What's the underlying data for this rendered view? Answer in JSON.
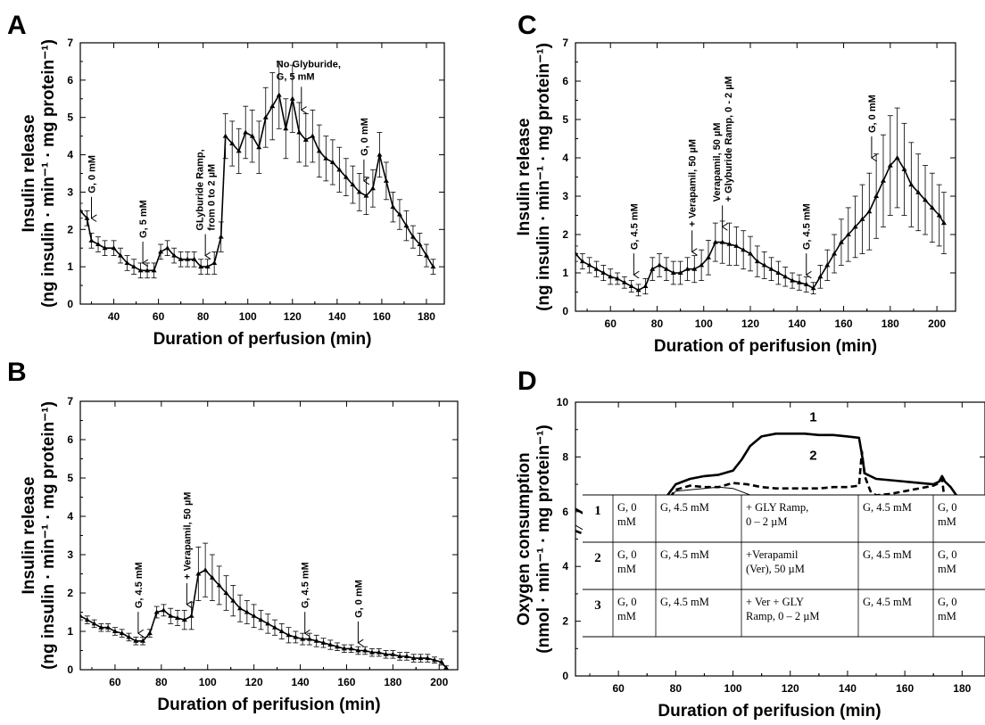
{
  "chart_data": [
    {
      "panel": "A",
      "type": "line",
      "xlabel": "Duration of perfusion (min)",
      "ylabel_line1": "Insulin release",
      "ylabel_line2": "(ng insulin · min⁻¹ · mg protein⁻¹)",
      "xlim": [
        25,
        188
      ],
      "ylim": [
        0,
        7
      ],
      "xticks": [
        40,
        60,
        80,
        100,
        120,
        140,
        160,
        180
      ],
      "yticks": [
        0,
        1,
        2,
        3,
        4,
        5,
        6,
        7
      ],
      "error_bars": true,
      "series": [
        {
          "x": [
            25,
            28,
            30,
            33,
            36,
            40,
            43,
            46,
            49,
            52,
            55,
            58,
            61,
            64,
            67,
            70,
            73,
            76,
            79,
            82,
            85,
            88,
            90,
            93,
            96,
            99,
            102,
            105,
            108,
            111,
            114,
            117,
            120,
            123,
            126,
            129,
            132,
            135,
            138,
            141,
            144,
            147,
            150,
            153,
            156,
            159,
            162,
            165,
            168,
            171,
            174,
            177,
            180,
            183
          ],
          "y": [
            2.5,
            2.3,
            1.7,
            1.6,
            1.5,
            1.5,
            1.3,
            1.1,
            1.0,
            0.9,
            0.9,
            0.9,
            1.4,
            1.5,
            1.3,
            1.2,
            1.2,
            1.2,
            1.0,
            1.0,
            1.1,
            1.8,
            4.5,
            4.3,
            4.1,
            4.6,
            4.5,
            4.2,
            5.0,
            5.3,
            5.6,
            4.7,
            5.5,
            4.6,
            4.4,
            4.5,
            4.1,
            3.9,
            3.8,
            3.6,
            3.4,
            3.2,
            3.0,
            2.9,
            3.1,
            4.0,
            3.3,
            2.6,
            2.4,
            2.1,
            1.8,
            1.6,
            1.3,
            1.0
          ],
          "err": [
            0.2,
            0.2,
            0.2,
            0.2,
            0.2,
            0.2,
            0.2,
            0.2,
            0.2,
            0.2,
            0.2,
            0.2,
            0.2,
            0.2,
            0.2,
            0.2,
            0.2,
            0.2,
            0.2,
            0.2,
            0.3,
            0.4,
            0.6,
            0.6,
            0.6,
            0.7,
            0.7,
            0.7,
            0.8,
            0.9,
            0.9,
            0.8,
            0.9,
            0.8,
            0.7,
            0.7,
            0.7,
            0.6,
            0.6,
            0.6,
            0.5,
            0.5,
            0.5,
            0.5,
            0.5,
            0.6,
            0.5,
            0.4,
            0.4,
            0.4,
            0.3,
            0.3,
            0.3,
            0.2
          ]
        }
      ],
      "annotations": [
        {
          "lines": [
            "G, 0 mM"
          ],
          "x": 30,
          "y": 2.3
        },
        {
          "lines": [
            "G, 5 mM"
          ],
          "x": 53,
          "y": 1.1
        },
        {
          "lines": [
            "GLyburide Ramp,",
            "from 0 to 2 µM"
          ],
          "x": 81,
          "y": 1.3
        },
        {
          "lines": [
            "No Glyburide,",
            "G, 5 mM"
          ],
          "x": 124,
          "y": 5.2,
          "horizontal": true
        },
        {
          "lines": [
            "G, 0 mM"
          ],
          "x": 152,
          "y": 3.3
        }
      ]
    },
    {
      "panel": "B",
      "type": "line",
      "xlabel": "Duration of perifusion (min)",
      "ylabel_line1": "Insulin release",
      "ylabel_line2": "(ng insulin · min⁻¹ · mg protein⁻¹)",
      "xlim": [
        45,
        208
      ],
      "ylim": [
        0,
        7
      ],
      "xticks": [
        60,
        80,
        100,
        120,
        140,
        160,
        180,
        200
      ],
      "yticks": [
        0,
        1,
        2,
        3,
        4,
        5,
        6,
        7
      ],
      "error_bars": true,
      "series": [
        {
          "x": [
            45,
            48,
            51,
            54,
            57,
            60,
            63,
            66,
            69,
            72,
            75,
            78,
            81,
            84,
            87,
            90,
            93,
            96,
            99,
            102,
            105,
            108,
            111,
            114,
            117,
            120,
            123,
            126,
            129,
            132,
            135,
            138,
            141,
            144,
            147,
            150,
            153,
            156,
            159,
            162,
            165,
            168,
            171,
            174,
            177,
            180,
            183,
            186,
            189,
            192,
            195,
            198,
            201,
            203
          ],
          "y": [
            1.4,
            1.3,
            1.2,
            1.1,
            1.1,
            1.0,
            0.95,
            0.85,
            0.75,
            0.75,
            0.95,
            1.5,
            1.55,
            1.4,
            1.35,
            1.3,
            1.4,
            2.5,
            2.6,
            2.4,
            2.2,
            2.0,
            1.8,
            1.6,
            1.5,
            1.4,
            1.3,
            1.2,
            1.1,
            1.0,
            0.9,
            0.85,
            0.8,
            0.8,
            0.75,
            0.7,
            0.65,
            0.6,
            0.55,
            0.55,
            0.5,
            0.5,
            0.45,
            0.45,
            0.4,
            0.4,
            0.35,
            0.35,
            0.3,
            0.3,
            0.3,
            0.25,
            0.2,
            0.05
          ],
          "err": [
            0.1,
            0.1,
            0.1,
            0.1,
            0.1,
            0.1,
            0.1,
            0.1,
            0.1,
            0.1,
            0.1,
            0.15,
            0.15,
            0.2,
            0.2,
            0.25,
            0.35,
            0.7,
            0.7,
            0.6,
            0.5,
            0.45,
            0.4,
            0.35,
            0.3,
            0.3,
            0.25,
            0.25,
            0.2,
            0.2,
            0.2,
            0.15,
            0.15,
            0.15,
            0.15,
            0.12,
            0.12,
            0.1,
            0.1,
            0.1,
            0.1,
            0.1,
            0.1,
            0.1,
            0.1,
            0.1,
            0.1,
            0.1,
            0.1,
            0.1,
            0.1,
            0.08,
            0.08,
            0.05
          ]
        }
      ],
      "annotations": [
        {
          "lines": [
            "G, 4.5 mM"
          ],
          "x": 70,
          "y": 0.95
        },
        {
          "lines": [
            "+ Verapamil, 50 µM"
          ],
          "x": 91,
          "y": 1.7
        },
        {
          "lines": [
            "G, 4.5 mM"
          ],
          "x": 142,
          "y": 0.95
        },
        {
          "lines": [
            "G, 0 mM"
          ],
          "x": 165,
          "y": 0.7
        }
      ]
    },
    {
      "panel": "C",
      "type": "line",
      "xlabel": "Duration of perifusion (min)",
      "ylabel_line1": "Insulin release",
      "ylabel_line2": "(ng insulin · min⁻¹ · mg protein⁻¹)",
      "xlim": [
        45,
        208
      ],
      "ylim": [
        0,
        7
      ],
      "xticks": [
        60,
        80,
        100,
        120,
        140,
        160,
        180,
        200
      ],
      "yticks": [
        0,
        1,
        2,
        3,
        4,
        5,
        6,
        7
      ],
      "error_bars": true,
      "series": [
        {
          "x": [
            45,
            48,
            51,
            54,
            57,
            60,
            63,
            66,
            69,
            72,
            75,
            78,
            81,
            84,
            87,
            90,
            93,
            96,
            99,
            102,
            105,
            108,
            111,
            114,
            117,
            120,
            123,
            126,
            129,
            132,
            135,
            138,
            141,
            144,
            147,
            150,
            153,
            156,
            159,
            162,
            165,
            168,
            171,
            174,
            177,
            180,
            183,
            186,
            189,
            192,
            195,
            198,
            201,
            203
          ],
          "y": [
            1.5,
            1.3,
            1.2,
            1.1,
            1.0,
            0.9,
            0.85,
            0.75,
            0.65,
            0.55,
            0.65,
            1.1,
            1.2,
            1.1,
            1.0,
            1.0,
            1.1,
            1.1,
            1.2,
            1.4,
            1.8,
            1.8,
            1.75,
            1.7,
            1.6,
            1.5,
            1.3,
            1.2,
            1.1,
            1.0,
            0.9,
            0.8,
            0.75,
            0.7,
            0.6,
            0.9,
            1.2,
            1.5,
            1.8,
            2.0,
            2.2,
            2.4,
            2.6,
            3.0,
            3.4,
            3.8,
            4.0,
            3.7,
            3.3,
            3.1,
            2.9,
            2.7,
            2.5,
            2.3
          ],
          "err": [
            0.2,
            0.2,
            0.2,
            0.2,
            0.2,
            0.2,
            0.15,
            0.15,
            0.15,
            0.15,
            0.2,
            0.3,
            0.3,
            0.3,
            0.3,
            0.3,
            0.3,
            0.35,
            0.4,
            0.45,
            0.5,
            0.55,
            0.55,
            0.5,
            0.5,
            0.45,
            0.4,
            0.35,
            0.3,
            0.3,
            0.25,
            0.2,
            0.2,
            0.2,
            0.15,
            0.3,
            0.4,
            0.5,
            0.6,
            0.7,
            0.8,
            0.9,
            1.0,
            1.1,
            1.2,
            1.3,
            1.3,
            1.2,
            1.1,
            1.0,
            0.9,
            0.9,
            0.8,
            0.8
          ]
        }
      ],
      "annotations": [
        {
          "lines": [
            "G, 4.5 mM"
          ],
          "x": 70,
          "y": 0.95
        },
        {
          "lines": [
            "+ Verapamil, 50 µM"
          ],
          "x": 95,
          "y": 1.55
        },
        {
          "lines": [
            "Verapamil, 50 µM",
            "+ Glyburide Ramp, 0 - 2 µM"
          ],
          "x": 108,
          "y": 2.2
        },
        {
          "lines": [
            "G, 4.5 mM"
          ],
          "x": 144,
          "y": 0.95
        },
        {
          "lines": [
            "G, 0 mM"
          ],
          "x": 172,
          "y": 4.0
        }
      ]
    },
    {
      "panel": "D",
      "type": "line",
      "xlabel": "Duration of perifusion (min)",
      "ylabel_line1": "Oxygen consumption",
      "ylabel_line2": "(nmol · min⁻¹ · mg protein⁻¹)",
      "xlim": [
        45,
        188
      ],
      "ylim": [
        0,
        10
      ],
      "xticks": [
        60,
        80,
        100,
        120,
        140,
        160,
        180
      ],
      "yticks": [
        0,
        2,
        4,
        6,
        8,
        10
      ],
      "series": [
        {
          "name": "1",
          "style": "solid-thick",
          "x": [
            45,
            50,
            55,
            60,
            65,
            70,
            72,
            75,
            80,
            85,
            90,
            95,
            100,
            103,
            106,
            110,
            115,
            120,
            125,
            130,
            135,
            140,
            144,
            145,
            146,
            150,
            155,
            160,
            165,
            170,
            172,
            173,
            174,
            176,
            178,
            180,
            183,
            186,
            188
          ],
          "y": [
            6.1,
            5.8,
            5.5,
            5.2,
            5.0,
            4.9,
            5.3,
            6.3,
            7.0,
            7.2,
            7.3,
            7.35,
            7.5,
            7.9,
            8.4,
            8.75,
            8.85,
            8.85,
            8.85,
            8.8,
            8.8,
            8.75,
            8.7,
            8.1,
            7.4,
            7.2,
            7.15,
            7.1,
            7.05,
            7.0,
            7.1,
            7.3,
            7.1,
            6.9,
            6.6,
            6.2,
            5.8,
            5.4,
            5.2
          ]
        },
        {
          "name": "2",
          "style": "dashed",
          "x": [
            45,
            50,
            55,
            60,
            65,
            70,
            72,
            75,
            80,
            85,
            90,
            95,
            100,
            105,
            110,
            115,
            120,
            125,
            130,
            135,
            140,
            144,
            145,
            146,
            148,
            150,
            155,
            160,
            165,
            170,
            172,
            173,
            174,
            175,
            177,
            180,
            183,
            186,
            188
          ],
          "y": [
            5.3,
            5.1,
            4.95,
            4.85,
            4.8,
            4.75,
            5.2,
            6.1,
            6.8,
            6.95,
            6.9,
            6.9,
            7.05,
            7.0,
            6.9,
            6.85,
            6.85,
            6.85,
            6.85,
            6.9,
            6.9,
            6.95,
            8.2,
            7.3,
            6.75,
            6.6,
            6.65,
            6.75,
            6.85,
            6.95,
            7.05,
            7.2,
            6.3,
            5.5,
            5.0,
            4.7,
            4.5,
            4.4,
            4.35
          ]
        },
        {
          "name": "3",
          "style": "solid-thin",
          "x": [
            45,
            50,
            55,
            60,
            65,
            70,
            72,
            75,
            80,
            85,
            90,
            95,
            100,
            105,
            110,
            115,
            120,
            125,
            130,
            135,
            140,
            143,
            144,
            145,
            146,
            148,
            150,
            155,
            160,
            165,
            170,
            172,
            173,
            175,
            178,
            180,
            183,
            186,
            188
          ],
          "y": [
            5.5,
            5.2,
            5.0,
            4.9,
            4.85,
            4.8,
            5.3,
            6.2,
            6.75,
            6.8,
            6.85,
            6.9,
            6.85,
            6.65,
            6.45,
            6.25,
            6.05,
            5.85,
            5.65,
            5.45,
            5.25,
            5.0,
            4.75,
            4.4,
            4.6,
            4.9,
            5.1,
            5.4,
            5.6,
            5.75,
            5.85,
            5.85,
            5.8,
            5.1,
            4.7,
            4.5,
            4.4,
            4.35,
            4.3
          ]
        }
      ],
      "curve_labels": [
        {
          "text": "1",
          "x": 128,
          "y": 9.3
        },
        {
          "text": "2",
          "x": 128,
          "y": 7.9
        },
        {
          "text": "3",
          "x": 128,
          "y": 6.2
        }
      ],
      "table": {
        "rows": [
          {
            "num": "1",
            "cells": [
              [
                "G, 0",
                "mM"
              ],
              [
                "G, 4.5 mM"
              ],
              [
                "+ GLY Ramp,",
                "0 – 2 µM"
              ],
              [
                "G, 4.5 mM"
              ],
              [
                "G, 0",
                "mM"
              ]
            ]
          },
          {
            "num": "2",
            "cells": [
              [
                "G, 0",
                "mM"
              ],
              [
                "G, 4.5 mM"
              ],
              [
                "+Verapamil",
                "(Ver), 50 µM"
              ],
              [
                "G, 4.5 mM"
              ],
              [
                "G, 0",
                "mM"
              ]
            ]
          },
          {
            "num": "3",
            "cells": [
              [
                "G, 0",
                "mM"
              ],
              [
                "G, 4.5 mM"
              ],
              [
                "+ Ver + GLY",
                "Ramp, 0 – 2 µM"
              ],
              [
                "G, 4.5 mM"
              ],
              [
                "G, 0",
                "mM"
              ]
            ]
          }
        ]
      }
    }
  ]
}
